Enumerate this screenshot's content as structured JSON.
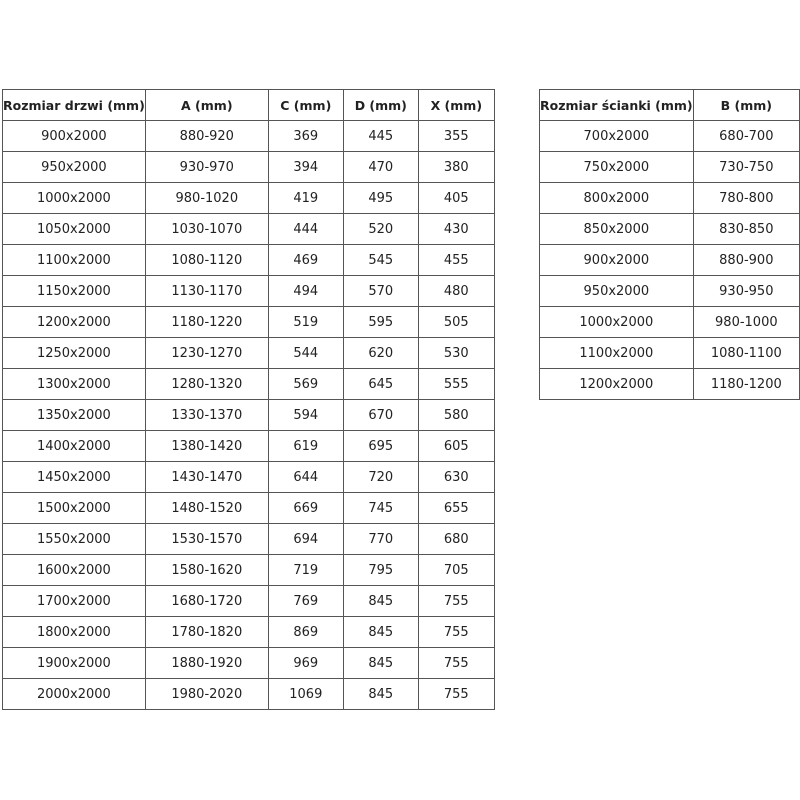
{
  "doors_table": {
    "headers": [
      "Rozmiar drzwi (mm)",
      "A (mm)",
      "C (mm)",
      "D (mm)",
      "X (mm)"
    ],
    "rows": [
      [
        "900x2000",
        "880-920",
        "369",
        "445",
        "355"
      ],
      [
        "950x2000",
        "930-970",
        "394",
        "470",
        "380"
      ],
      [
        "1000x2000",
        "980-1020",
        "419",
        "495",
        "405"
      ],
      [
        "1050x2000",
        "1030-1070",
        "444",
        "520",
        "430"
      ],
      [
        "1100x2000",
        "1080-1120",
        "469",
        "545",
        "455"
      ],
      [
        "1150x2000",
        "1130-1170",
        "494",
        "570",
        "480"
      ],
      [
        "1200x2000",
        "1180-1220",
        "519",
        "595",
        "505"
      ],
      [
        "1250x2000",
        "1230-1270",
        "544",
        "620",
        "530"
      ],
      [
        "1300x2000",
        "1280-1320",
        "569",
        "645",
        "555"
      ],
      [
        "1350x2000",
        "1330-1370",
        "594",
        "670",
        "580"
      ],
      [
        "1400x2000",
        "1380-1420",
        "619",
        "695",
        "605"
      ],
      [
        "1450x2000",
        "1430-1470",
        "644",
        "720",
        "630"
      ],
      [
        "1500x2000",
        "1480-1520",
        "669",
        "745",
        "655"
      ],
      [
        "1550x2000",
        "1530-1570",
        "694",
        "770",
        "680"
      ],
      [
        "1600x2000",
        "1580-1620",
        "719",
        "795",
        "705"
      ],
      [
        "1700x2000",
        "1680-1720",
        "769",
        "845",
        "755"
      ],
      [
        "1800x2000",
        "1780-1820",
        "869",
        "845",
        "755"
      ],
      [
        "1900x2000",
        "1880-1920",
        "969",
        "845",
        "755"
      ],
      [
        "2000x2000",
        "1980-2020",
        "1069",
        "845",
        "755"
      ]
    ]
  },
  "walls_table": {
    "headers": [
      "Rozmiar ścianki (mm)",
      "B (mm)"
    ],
    "rows": [
      [
        "700x2000",
        "680-700"
      ],
      [
        "750x2000",
        "730-750"
      ],
      [
        "800x2000",
        "780-800"
      ],
      [
        "850x2000",
        "830-850"
      ],
      [
        "900x2000",
        "880-900"
      ],
      [
        "950x2000",
        "930-950"
      ],
      [
        "1000x2000",
        "980-1000"
      ],
      [
        "1100x2000",
        "1080-1100"
      ],
      [
        "1200x2000",
        "1180-1200"
      ]
    ]
  }
}
